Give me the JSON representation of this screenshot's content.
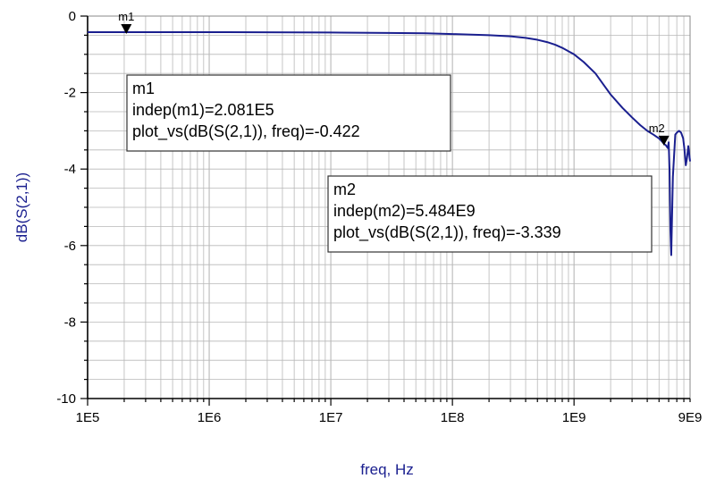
{
  "chart_data": {
    "type": "line",
    "xlabel": "freq, Hz",
    "ylabel": "dB(S(2,1))",
    "x_scale": "log",
    "xlim": [
      100000,
      9000000000
    ],
    "ylim": [
      -10,
      0
    ],
    "x_ticks": [
      {
        "value": 100000,
        "label": "1E5"
      },
      {
        "value": 1000000,
        "label": "1E6"
      },
      {
        "value": 10000000,
        "label": "1E7"
      },
      {
        "value": 100000000,
        "label": "1E8"
      },
      {
        "value": 1000000000,
        "label": "1E9"
      },
      {
        "value": 9000000000,
        "label": "9E9"
      }
    ],
    "y_ticks": [
      {
        "value": 0,
        "label": "0"
      },
      {
        "value": -2,
        "label": "-2"
      },
      {
        "value": -4,
        "label": "-4"
      },
      {
        "value": -6,
        "label": "-6"
      },
      {
        "value": -8,
        "label": "-8"
      },
      {
        "value": -10,
        "label": "-10"
      }
    ],
    "grid": true,
    "colors": {
      "line": "#1a1f8f",
      "grid": "#b8b8b8",
      "axis": "#000000",
      "axis_title": "#1a1f8f"
    },
    "series": [
      {
        "x": [
          100000,
          1000000,
          10000000,
          30000000,
          60000000,
          100000000,
          200000000,
          300000000,
          400000000,
          500000000,
          600000000,
          700000000,
          800000000,
          1000000000,
          1200000000,
          1500000000,
          1800000000,
          2000000000,
          2500000000,
          3000000000,
          3500000000,
          4000000000,
          4500000000,
          5000000000,
          5300000000,
          5484000000,
          5700000000,
          5900000000,
          6000000000,
          6100000000,
          6200000000,
          6300000000,
          6500000000,
          6800000000,
          7000000000,
          7300000000,
          7600000000,
          7900000000,
          8100000000,
          8300000000,
          8500000000,
          8700000000,
          9000000000
        ],
        "y": [
          -0.42,
          -0.42,
          -0.43,
          -0.44,
          -0.45,
          -0.47,
          -0.5,
          -0.53,
          -0.57,
          -0.62,
          -0.68,
          -0.75,
          -0.83,
          -1.0,
          -1.2,
          -1.5,
          -1.85,
          -2.05,
          -2.4,
          -2.65,
          -2.85,
          -3.0,
          -3.1,
          -3.2,
          -3.28,
          -3.339,
          -3.38,
          -3.45,
          -3.3,
          -4.0,
          -5.6,
          -6.25,
          -4.2,
          -3.1,
          -3.05,
          -3.0,
          -3.05,
          -3.2,
          -3.5,
          -3.9,
          -3.7,
          -3.4,
          -3.8
        ]
      }
    ],
    "markers": [
      {
        "name": "m1",
        "x": 208100,
        "y": -0.422,
        "lines": [
          "m1",
          "indep(m1)=2.081E5",
          "plot_vs(dB(S(2,1)), freq)=-0.422"
        ]
      },
      {
        "name": "m2",
        "x": 5484000000,
        "y": -3.339,
        "lines": [
          "m2",
          "indep(m2)=5.484E9",
          "plot_vs(dB(S(2,1)), freq)=-3.339"
        ]
      }
    ]
  }
}
